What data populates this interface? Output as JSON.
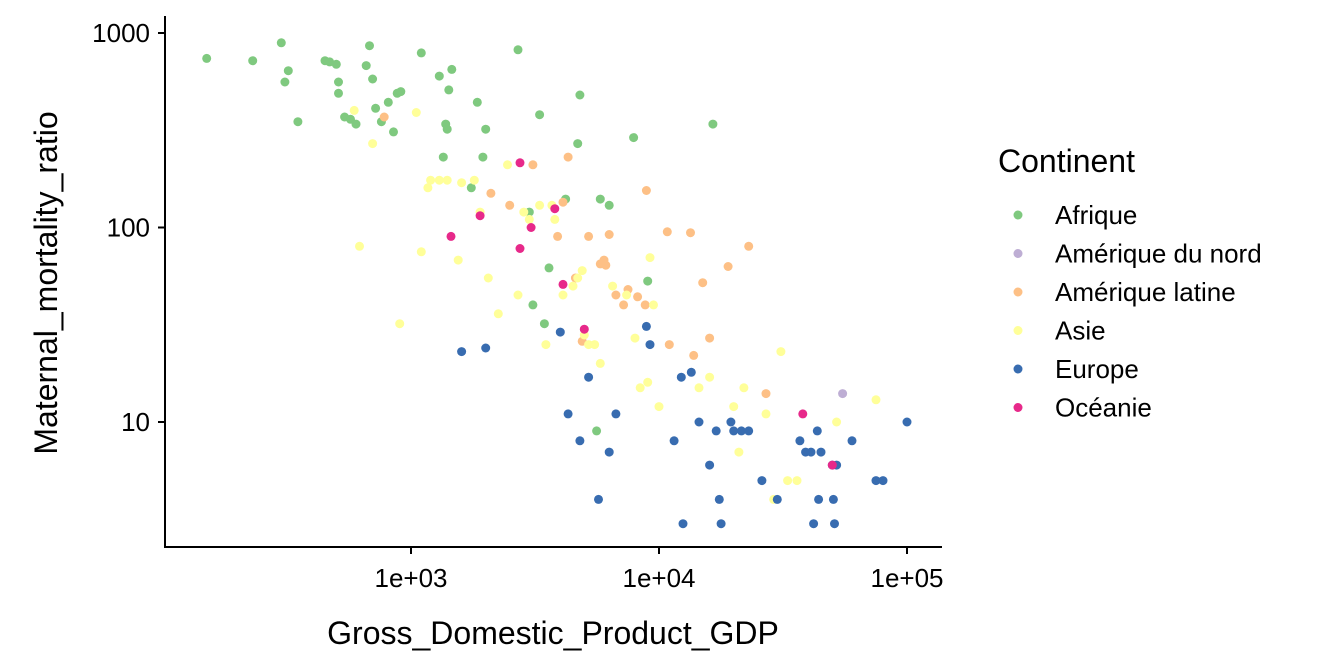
{
  "chart_data": {
    "type": "scatter",
    "xlabel": "Gross_Domestic_Product_GDP",
    "ylabel": "Maternal_mortality_ratio",
    "x_scale": "log",
    "y_scale": "log",
    "xlim": [
      100,
      150000
    ],
    "ylim": [
      2.5,
      1200
    ],
    "x_ticks": [
      {
        "value": 1000,
        "label": "1e+03"
      },
      {
        "value": 10000,
        "label": "1e+04"
      },
      {
        "value": 100000,
        "label": "1e+05"
      }
    ],
    "y_ticks": [
      {
        "value": 10,
        "label": "10"
      },
      {
        "value": 100,
        "label": "100"
      },
      {
        "value": 1000,
        "label": "1000"
      }
    ],
    "grid": false,
    "legend": {
      "title": "Continent",
      "position": "right"
    },
    "series": [
      {
        "name": "Afrique",
        "color": "#7fc97f",
        "points": [
          [
            150,
            740
          ],
          [
            230,
            720
          ],
          [
            300,
            890
          ],
          [
            320,
            640
          ],
          [
            310,
            560
          ],
          [
            350,
            350
          ],
          [
            450,
            720
          ],
          [
            470,
            710
          ],
          [
            500,
            690
          ],
          [
            510,
            560
          ],
          [
            510,
            490
          ],
          [
            540,
            370
          ],
          [
            570,
            360
          ],
          [
            600,
            340
          ],
          [
            660,
            680
          ],
          [
            680,
            860
          ],
          [
            700,
            580
          ],
          [
            720,
            410
          ],
          [
            760,
            350
          ],
          [
            810,
            440
          ],
          [
            850,
            310
          ],
          [
            880,
            490
          ],
          [
            910,
            500
          ],
          [
            1100,
            790
          ],
          [
            1300,
            600
          ],
          [
            1350,
            230
          ],
          [
            1380,
            340
          ],
          [
            1400,
            320
          ],
          [
            1420,
            510
          ],
          [
            1460,
            650
          ],
          [
            1750,
            160
          ],
          [
            1850,
            440
          ],
          [
            1950,
            230
          ],
          [
            2000,
            320
          ],
          [
            2700,
            820
          ],
          [
            3000,
            120
          ],
          [
            3100,
            40
          ],
          [
            3300,
            380
          ],
          [
            3450,
            32
          ],
          [
            3600,
            62
          ],
          [
            4200,
            140
          ],
          [
            4700,
            270
          ],
          [
            4800,
            480
          ],
          [
            5600,
            9
          ],
          [
            5800,
            140
          ],
          [
            6300,
            130
          ],
          [
            7900,
            290
          ],
          [
            9000,
            53
          ],
          [
            16500,
            340
          ]
        ]
      },
      {
        "name": "Amérique du nord",
        "color": "#beaed4",
        "points": [
          [
            55000,
            14
          ]
        ]
      },
      {
        "name": "Amérique latine",
        "color": "#fdc086",
        "points": [
          [
            780,
            370
          ],
          [
            2100,
            150
          ],
          [
            2500,
            130
          ],
          [
            3100,
            210
          ],
          [
            3900,
            90
          ],
          [
            4100,
            135
          ],
          [
            4300,
            230
          ],
          [
            4600,
            55
          ],
          [
            4900,
            26
          ],
          [
            5200,
            90
          ],
          [
            5800,
            65
          ],
          [
            6000,
            68
          ],
          [
            6100,
            64
          ],
          [
            6300,
            92
          ],
          [
            6700,
            45
          ],
          [
            7200,
            40
          ],
          [
            7500,
            48
          ],
          [
            8200,
            44
          ],
          [
            8800,
            40
          ],
          [
            8900,
            155
          ],
          [
            10800,
            95
          ],
          [
            11000,
            25
          ],
          [
            13400,
            94
          ],
          [
            13800,
            22
          ],
          [
            15000,
            52
          ],
          [
            16000,
            27
          ],
          [
            19000,
            63
          ],
          [
            23000,
            80
          ],
          [
            27000,
            14
          ]
        ]
      },
      {
        "name": "Asie",
        "color": "#ffff99",
        "points": [
          [
            590,
            400
          ],
          [
            620,
            80
          ],
          [
            700,
            270
          ],
          [
            900,
            32
          ],
          [
            1050,
            390
          ],
          [
            1100,
            75
          ],
          [
            1170,
            160
          ],
          [
            1200,
            175
          ],
          [
            1300,
            175
          ],
          [
            1400,
            175
          ],
          [
            1550,
            68
          ],
          [
            1600,
            170
          ],
          [
            1800,
            175
          ],
          [
            1900,
            120
          ],
          [
            2050,
            55
          ],
          [
            2250,
            36
          ],
          [
            2450,
            210
          ],
          [
            2700,
            45
          ],
          [
            2850,
            120
          ],
          [
            3000,
            110
          ],
          [
            3300,
            130
          ],
          [
            3500,
            25
          ],
          [
            3700,
            130
          ],
          [
            3800,
            110
          ],
          [
            4100,
            45
          ],
          [
            4500,
            50
          ],
          [
            4700,
            55
          ],
          [
            4900,
            60
          ],
          [
            5000,
            28
          ],
          [
            5200,
            25
          ],
          [
            5500,
            25
          ],
          [
            5800,
            20
          ],
          [
            6500,
            50
          ],
          [
            7400,
            45
          ],
          [
            8000,
            27
          ],
          [
            8400,
            15
          ],
          [
            9000,
            16
          ],
          [
            9200,
            70
          ],
          [
            9500,
            40
          ],
          [
            10000,
            12
          ],
          [
            14500,
            15
          ],
          [
            16000,
            17
          ],
          [
            20000,
            12
          ],
          [
            21000,
            7
          ],
          [
            22000,
            15
          ],
          [
            27000,
            11
          ],
          [
            29000,
            4
          ],
          [
            31000,
            23
          ],
          [
            33000,
            5
          ],
          [
            36000,
            5
          ],
          [
            52000,
            10
          ],
          [
            75000,
            13
          ]
        ]
      },
      {
        "name": "Europe",
        "color": "#386cb0",
        "points": [
          [
            1600,
            23
          ],
          [
            2000,
            24
          ],
          [
            4000,
            29
          ],
          [
            4300,
            11
          ],
          [
            4800,
            8
          ],
          [
            5200,
            17
          ],
          [
            5700,
            4
          ],
          [
            6300,
            7
          ],
          [
            6700,
            11
          ],
          [
            8900,
            31
          ],
          [
            9200,
            25
          ],
          [
            11500,
            8
          ],
          [
            12300,
            17
          ],
          [
            12500,
            3
          ],
          [
            13500,
            18
          ],
          [
            14500,
            10
          ],
          [
            16000,
            6
          ],
          [
            17000,
            9
          ],
          [
            17500,
            4
          ],
          [
            17800,
            3
          ],
          [
            19500,
            10
          ],
          [
            20000,
            9
          ],
          [
            21500,
            9
          ],
          [
            23000,
            9
          ],
          [
            26000,
            5
          ],
          [
            30000,
            4
          ],
          [
            37000,
            8
          ],
          [
            39000,
            7
          ],
          [
            41000,
            7
          ],
          [
            42000,
            3
          ],
          [
            43500,
            9
          ],
          [
            44000,
            4
          ],
          [
            45000,
            7
          ],
          [
            50000,
            6
          ],
          [
            50500,
            4
          ],
          [
            51000,
            3
          ],
          [
            52000,
            6
          ],
          [
            60000,
            8
          ],
          [
            75000,
            5
          ],
          [
            80000,
            5
          ],
          [
            100000,
            10
          ]
        ]
      },
      {
        "name": "Océanie",
        "color": "#e7298a",
        "points": [
          [
            1450,
            90
          ],
          [
            1900,
            115
          ],
          [
            2750,
            215
          ],
          [
            2750,
            78
          ],
          [
            3050,
            100
          ],
          [
            3800,
            125
          ],
          [
            4100,
            51
          ],
          [
            5000,
            30
          ],
          [
            38000,
            11
          ],
          [
            50000,
            6
          ]
        ]
      }
    ]
  }
}
